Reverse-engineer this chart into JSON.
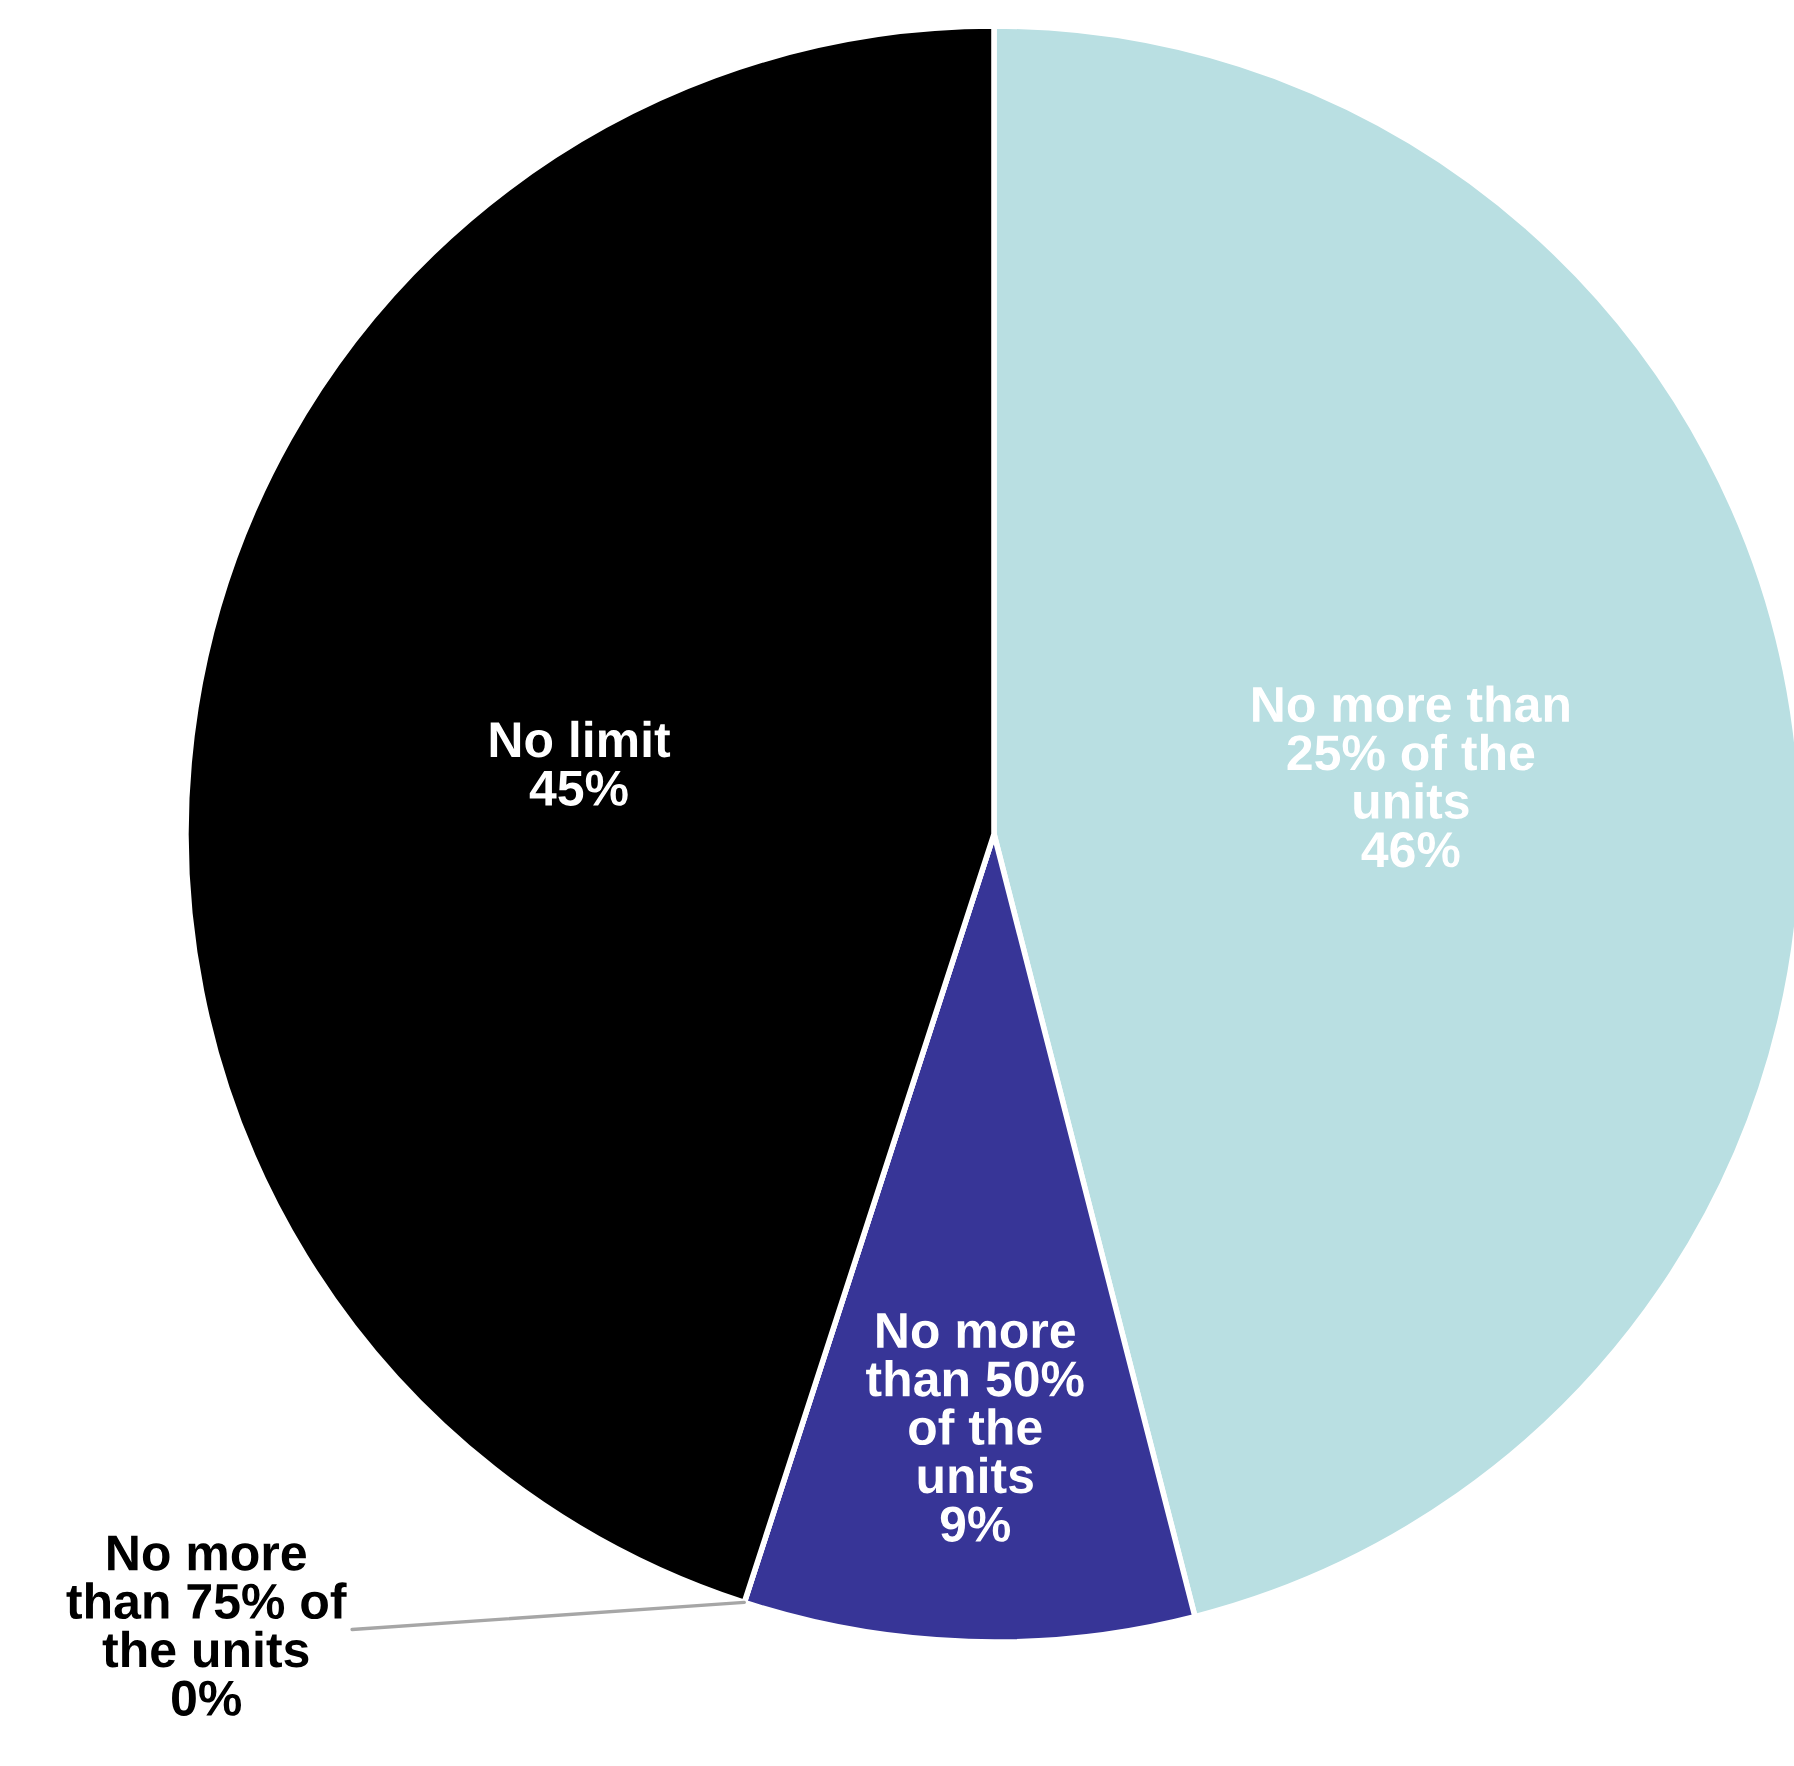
{
  "chart_data": {
    "type": "pie",
    "categories": [
      "No more than\n25% of the\nunits",
      "No more\nthan 50%\nof the\nunits",
      "No more\nthan 75% of\nthe units",
      "No limit"
    ],
    "values": [
      46,
      9,
      0,
      45
    ],
    "colors": [
      "#b9dfe2",
      "#373597",
      "#7f7f7f",
      "#000000"
    ],
    "value_labels": [
      "46%",
      "9%",
      "0%",
      "45%"
    ],
    "legend": false
  }
}
